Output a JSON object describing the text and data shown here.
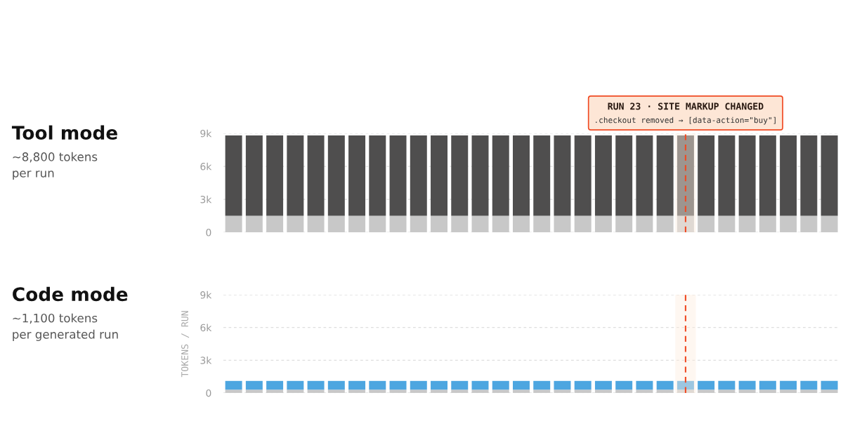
{
  "chart_data": [
    {
      "type": "bar",
      "title": "Tool mode",
      "stacked": true,
      "categories": [
        null,
        null,
        null,
        null,
        null,
        null,
        null,
        null,
        null,
        null,
        null,
        null,
        null,
        null,
        null,
        null,
        null,
        null,
        null,
        null,
        null,
        null,
        null,
        null,
        null,
        null,
        null,
        null,
        null,
        null
      ],
      "ylim": [
        0,
        9000
      ],
      "yticks": [
        0,
        {
          "value": 3000,
          "label": "3k"
        },
        {
          "value": 6000,
          "label": "6k"
        },
        {
          "value": 9000,
          "label": "9k"
        }
      ],
      "tick_labels": "y",
      "grid": "y",
      "series": [
        {
          "color": "#c8c8c8",
          "values": [
            1500,
            1500,
            1500,
            1500,
            1500,
            1500,
            1500,
            1500,
            1500,
            1500,
            1500,
            1500,
            1500,
            1500,
            1500,
            1500,
            1500,
            1500,
            1500,
            1500,
            1500,
            1500,
            1500,
            1500,
            1500,
            1500,
            1500,
            1500,
            1500,
            1500
          ]
        },
        {
          "color": "#4f4e4e",
          "values": [
            7300,
            7300,
            7300,
            7300,
            7300,
            7300,
            7300,
            7300,
            7300,
            7300,
            7300,
            7300,
            7300,
            7300,
            7300,
            7300,
            7300,
            7300,
            7300,
            7300,
            7300,
            7300,
            7300,
            7300,
            7300,
            7300,
            7300,
            7300,
            7300,
            7300
          ]
        }
      ],
      "annotations": [
        "~8,800 tokens\nper run",
        "RUN 23 · SITE MARKUP CHANGED",
        ".checkout removed → [data-action=\"buy\"]"
      ]
    },
    {
      "type": "bar",
      "title": "Code mode",
      "ylabel": "TOKENS / RUN",
      "stacked": true,
      "categories": [
        null,
        null,
        null,
        null,
        null,
        null,
        null,
        null,
        null,
        null,
        null,
        null,
        null,
        null,
        null,
        null,
        null,
        null,
        null,
        null,
        null,
        null,
        null,
        null,
        null,
        null,
        null,
        null,
        null,
        null
      ],
      "ylim": [
        0,
        9000
      ],
      "yticks": [
        0,
        {
          "value": 3000,
          "label": "3k"
        },
        {
          "value": 6000,
          "label": "6k"
        },
        {
          "value": 9000,
          "label": "9k"
        }
      ],
      "tick_labels": "y",
      "grid": "y",
      "series": [
        {
          "color": "#c8c8c8",
          "values": [
            300,
            300,
            300,
            300,
            300,
            300,
            300,
            300,
            300,
            300,
            300,
            300,
            300,
            300,
            300,
            300,
            300,
            300,
            300,
            300,
            300,
            300,
            300,
            300,
            300,
            300,
            300,
            300,
            300,
            300
          ]
        },
        {
          "color": "#4da6e0",
          "values": [
            800,
            800,
            800,
            800,
            800,
            800,
            800,
            800,
            800,
            800,
            800,
            800,
            800,
            800,
            800,
            800,
            800,
            800,
            800,
            800,
            800,
            800,
            800,
            800,
            800,
            800,
            800,
            800,
            800,
            800
          ]
        }
      ],
      "annotations": [
        "~1,100 tokens\nper generated run"
      ]
    }
  ]
}
